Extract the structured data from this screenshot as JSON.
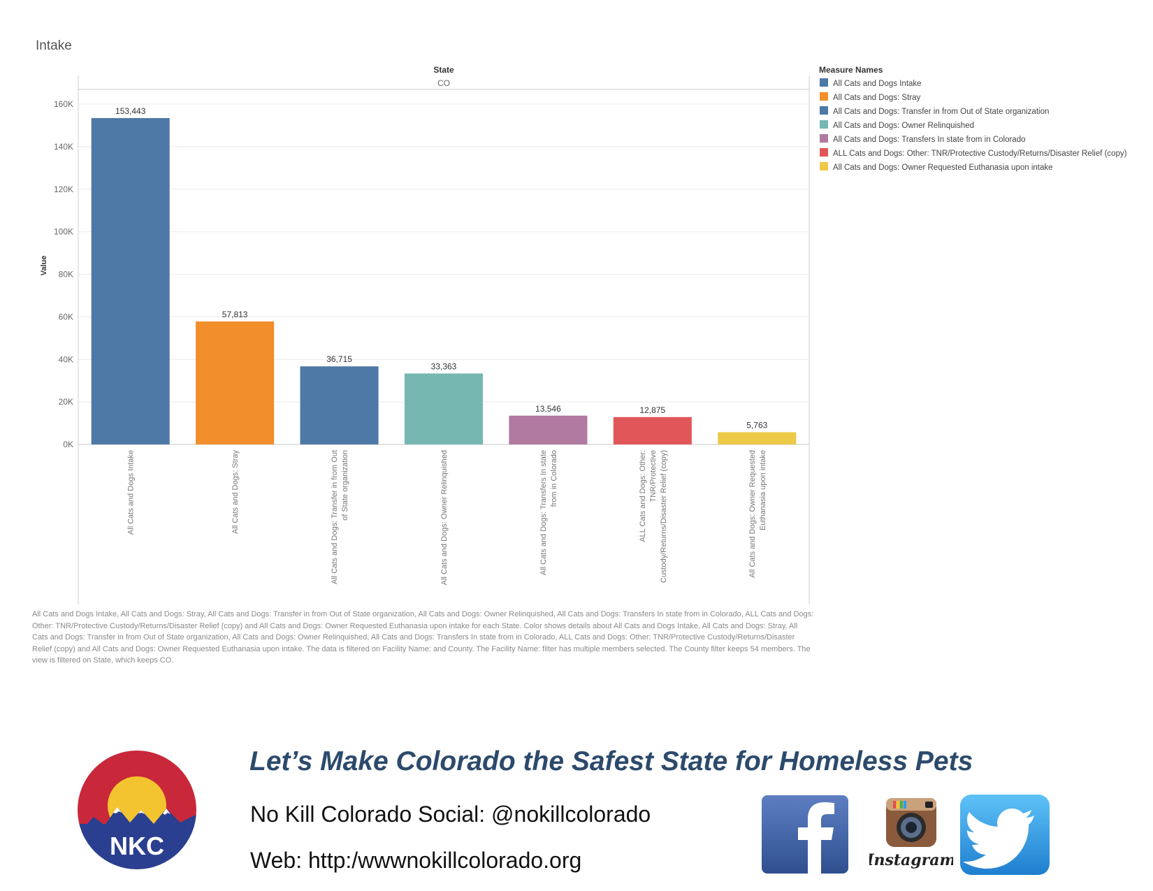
{
  "chart_data": {
    "type": "bar",
    "title": "Intake",
    "column_header_label": "State",
    "column_header_value": "CO",
    "ylabel": "Value",
    "ylim": [
      0,
      165000
    ],
    "yticks": [
      0,
      20000,
      40000,
      60000,
      80000,
      100000,
      120000,
      140000,
      160000
    ],
    "ytick_labels": [
      "0K",
      "20K",
      "40K",
      "60K",
      "80K",
      "100K",
      "120K",
      "140K",
      "160K"
    ],
    "grid": true,
    "legend_position": "right",
    "legend_title": "Measure Names",
    "categories": [
      "All Cats and Dogs Intake",
      "All Cats and Dogs: Stray",
      "All Cats and Dogs: Transfer in from Out of State organization",
      "All Cats and Dogs: Owner Relinquished",
      "All Cats and Dogs: Transfers In state from in Colorado",
      "ALL Cats and Dogs: Other: TNR/Protective Custody/Returns/Disaster Relief (copy)",
      "All Cats and Dogs: Owner Requested Euthanasia upon intake"
    ],
    "tick_label_lines": [
      [
        "All Cats and Dogs Intake"
      ],
      [
        "All Cats and Dogs: Stray"
      ],
      [
        "All Cats and Dogs: Transfer in from Out",
        "of State organization"
      ],
      [
        "All Cats and Dogs: Owner Relinquished"
      ],
      [
        "All Cats and Dogs: Transfers In state",
        "from in Colorado"
      ],
      [
        "ALL Cats and Dogs: Other:",
        "TNR/Protective",
        "Custody/Returns/Disaster Relief (copy)"
      ],
      [
        "All Cats and Dogs: Owner Requested",
        "Euthanasia upon intake"
      ]
    ],
    "values": [
      153443,
      57813,
      36715,
      33363,
      13546,
      12875,
      5763
    ],
    "value_labels": [
      "153,443",
      "57,813",
      "36,715",
      "33,363",
      "13,546",
      "12,875",
      "5,763"
    ],
    "colors": [
      "#4e79a7",
      "#f28e2b",
      "#4e79a7",
      "#76b7b2",
      "#b07aa1",
      "#e15759",
      "#edc948"
    ],
    "legend_entries": [
      {
        "label": "All Cats and Dogs Intake",
        "color": "#4e79a7"
      },
      {
        "label": "All Cats and Dogs: Stray",
        "color": "#f28e2b"
      },
      {
        "label": "All Cats and Dogs: Transfer in from Out of State organization",
        "color": "#4e79a7"
      },
      {
        "label": "All Cats and Dogs: Owner Relinquished",
        "color": "#76b7b2"
      },
      {
        "label": "All Cats and Dogs: Transfers In state from in Colorado",
        "color": "#b07aa1"
      },
      {
        "label": "ALL Cats and Dogs: Other: TNR/Protective Custody/Returns/Disaster Relief (copy)",
        "color": "#e15759"
      },
      {
        "label": "All Cats and Dogs: Owner Requested Euthanasia upon intake",
        "color": "#edc948"
      }
    ],
    "caption": "All Cats and Dogs Intake, All Cats and Dogs: Stray, All Cats and Dogs: Transfer in from Out of State organization, All Cats and Dogs: Owner Relinquished, All Cats and Dogs: Transfers In state from in Colorado, ALL Cats and Dogs: Other: TNR/Protective Custody/Returns/Disaster Relief (copy) and All Cats and Dogs: Owner Requested Euthanasia upon intake for each State.  Color shows details about All Cats and Dogs Intake, All Cats and Dogs: Stray, All Cats and Dogs: Transfer in from Out of State organization, All Cats and Dogs: Owner Relinquished, All Cats and Dogs: Transfers In state from in Colorado, ALL Cats and Dogs: Other: TNR/Protective Custody/Returns/Disaster Relief (copy) and All Cats and Dogs: Owner Requested Euthanasia upon intake. The data is filtered on Facility Name: and County. The Facility Name: filter has multiple members selected. The County filter keeps 54 members. The view is filtered on State, which keeps CO."
  },
  "footer": {
    "tagline": "Let’s Make Colorado the Safest State for Homeless Pets",
    "social": "No Kill Colorado Social: @nokillcolorado",
    "web": "Web: http:/wwwnokillcolorado.org",
    "logo_text": "NKC",
    "instagram_text": "Instagram",
    "brand_colors": {
      "navy": "#2c4a6b",
      "logo_red": "#c8283a",
      "logo_blue": "#2a3f8f",
      "logo_sun": "#f4c430",
      "facebook": "#3b5998",
      "twitter": "#2a9df4"
    }
  }
}
